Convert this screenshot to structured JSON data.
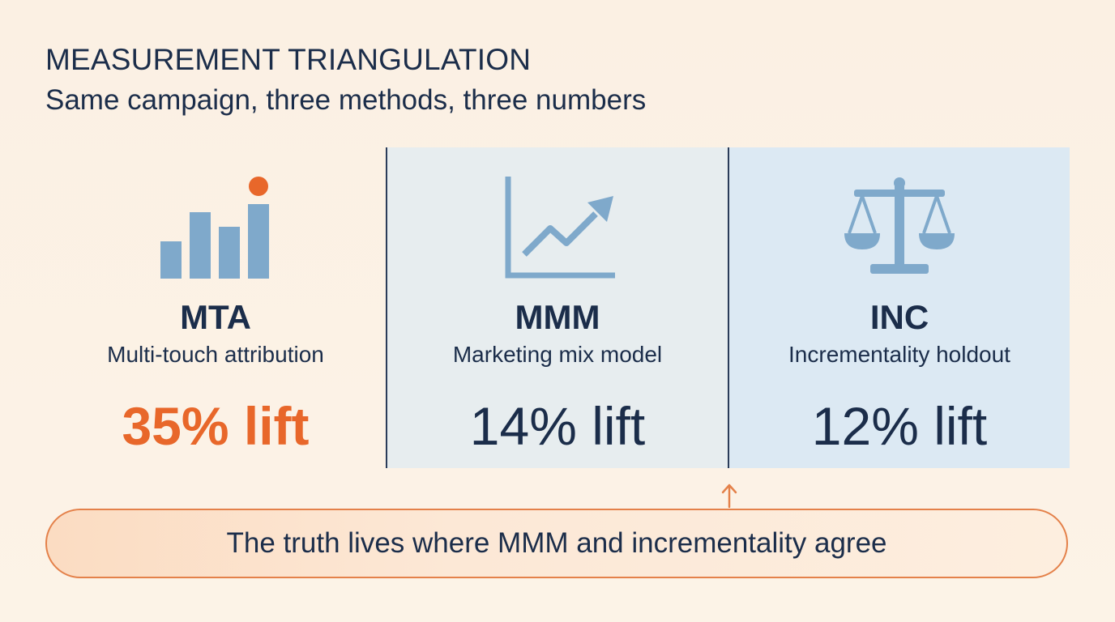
{
  "header": {
    "title": "MEASUREMENT TRIANGULATION",
    "subtitle": "Same campaign, three methods, three numbers"
  },
  "methods": [
    {
      "code": "MTA",
      "description": "Multi-touch attribution",
      "lift": "35% lift",
      "icon": "bar-chart-icon",
      "highlight_color": "#e8672a"
    },
    {
      "code": "MMM",
      "description": "Marketing mix model",
      "lift": "14% lift",
      "icon": "trend-line-icon"
    },
    {
      "code": "INC",
      "description": "Incrementality holdout",
      "lift": "12% lift",
      "icon": "balance-scale-icon"
    }
  ],
  "callout": {
    "text": "The truth lives where MMM and incrementality agree"
  },
  "colors": {
    "accent_orange": "#e8672a",
    "icon_blue": "#7fa9cb",
    "text_navy": "#1b2d4a",
    "mmm_panel_bg": "#e7edef",
    "inc_panel_bg": "#dce9f3"
  }
}
